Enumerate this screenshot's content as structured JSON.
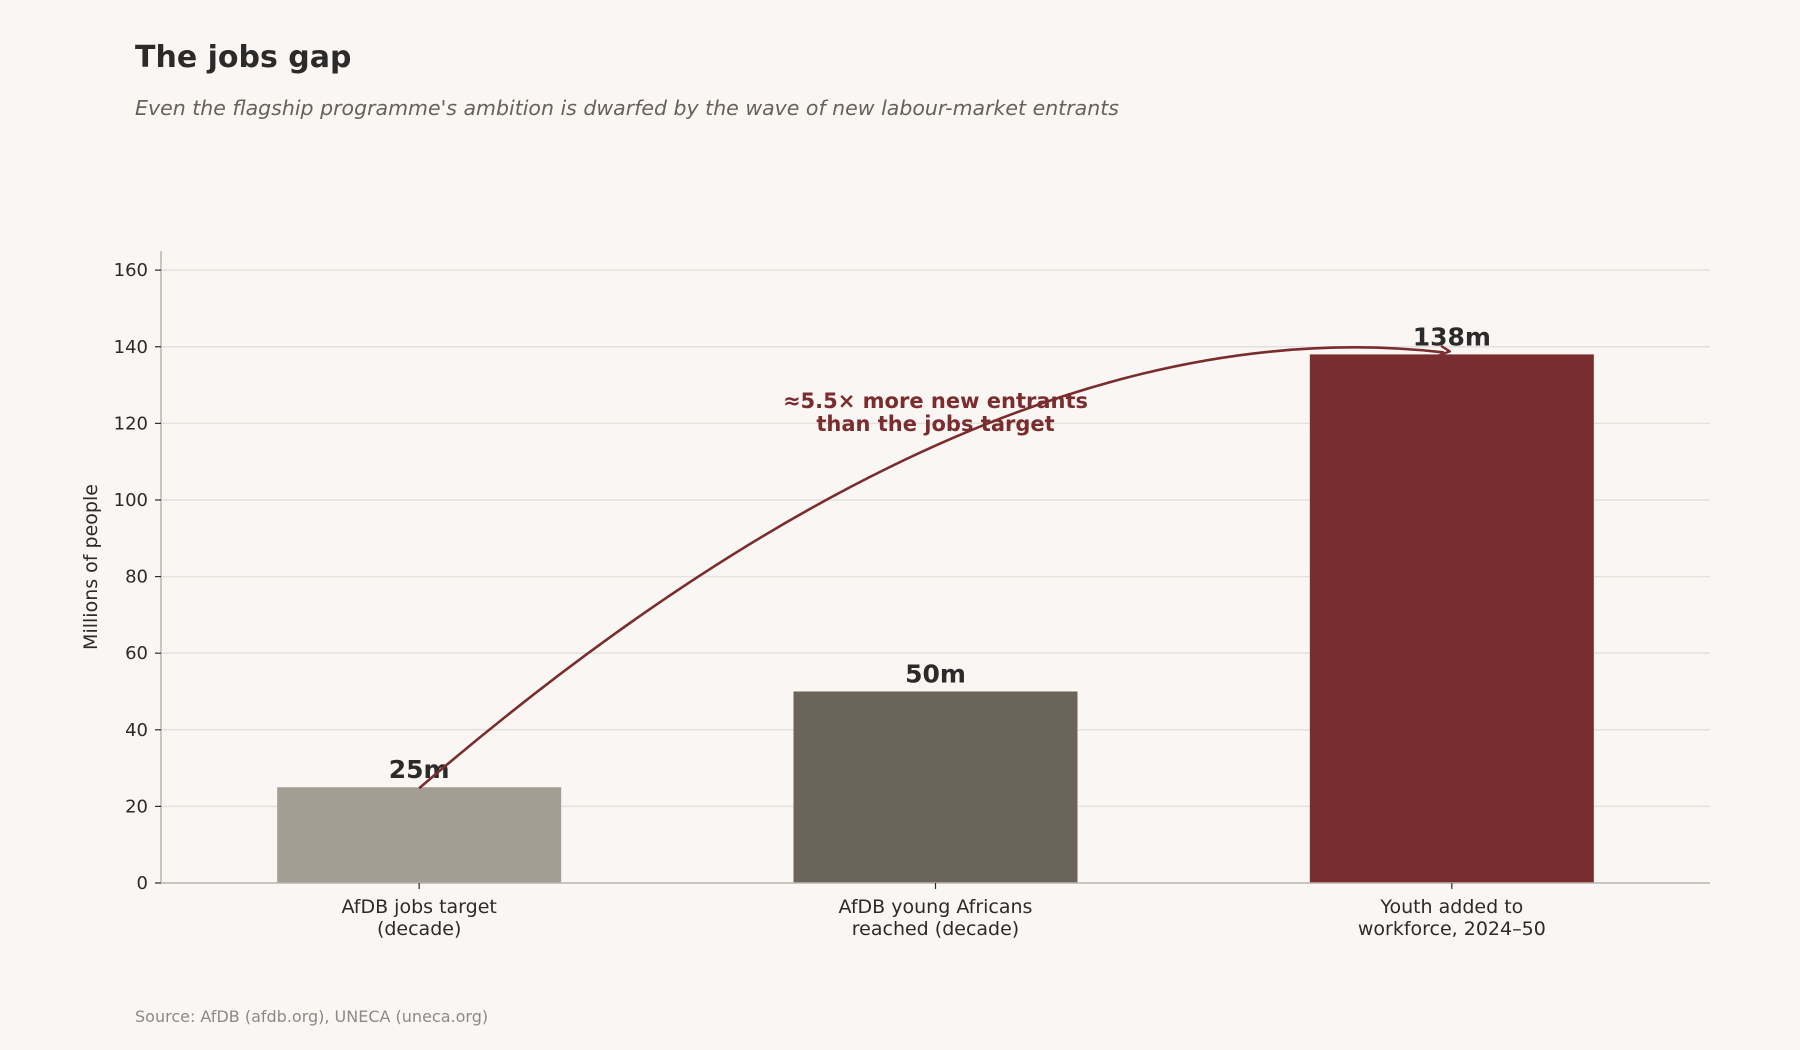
{
  "title": "The jobs gap",
  "subtitle": "Even the flagship programme's ambition is dwarfed by the wave of new labour-market entrants",
  "source": "Source: AfDB (afdb.org), UNECA (uneca.org)",
  "chart_data": {
    "type": "bar",
    "categories": [
      [
        "AfDB jobs target",
        "(decade)"
      ],
      [
        "AfDB young Africans",
        "reached (decade)"
      ],
      [
        "Youth added to",
        "workforce, 2024–50"
      ]
    ],
    "values": [
      25,
      50,
      138
    ],
    "value_labels": [
      "25m",
      "50m",
      "138m"
    ],
    "colors": [
      "#a29e93",
      "#6b645a",
      "#7a2d2e"
    ],
    "ylabel": "Millions of people",
    "xlabel": "",
    "ylim": [
      0,
      165
    ],
    "yticks": [
      0,
      20,
      40,
      60,
      80,
      100,
      120,
      140,
      160
    ],
    "grid": "horizontal",
    "annotation": {
      "lines": [
        "≈5.5× more new entrants",
        "than the jobs target"
      ],
      "color": "#7a2d2e",
      "arrow_from_category": 0,
      "arrow_to_category": 2
    }
  }
}
